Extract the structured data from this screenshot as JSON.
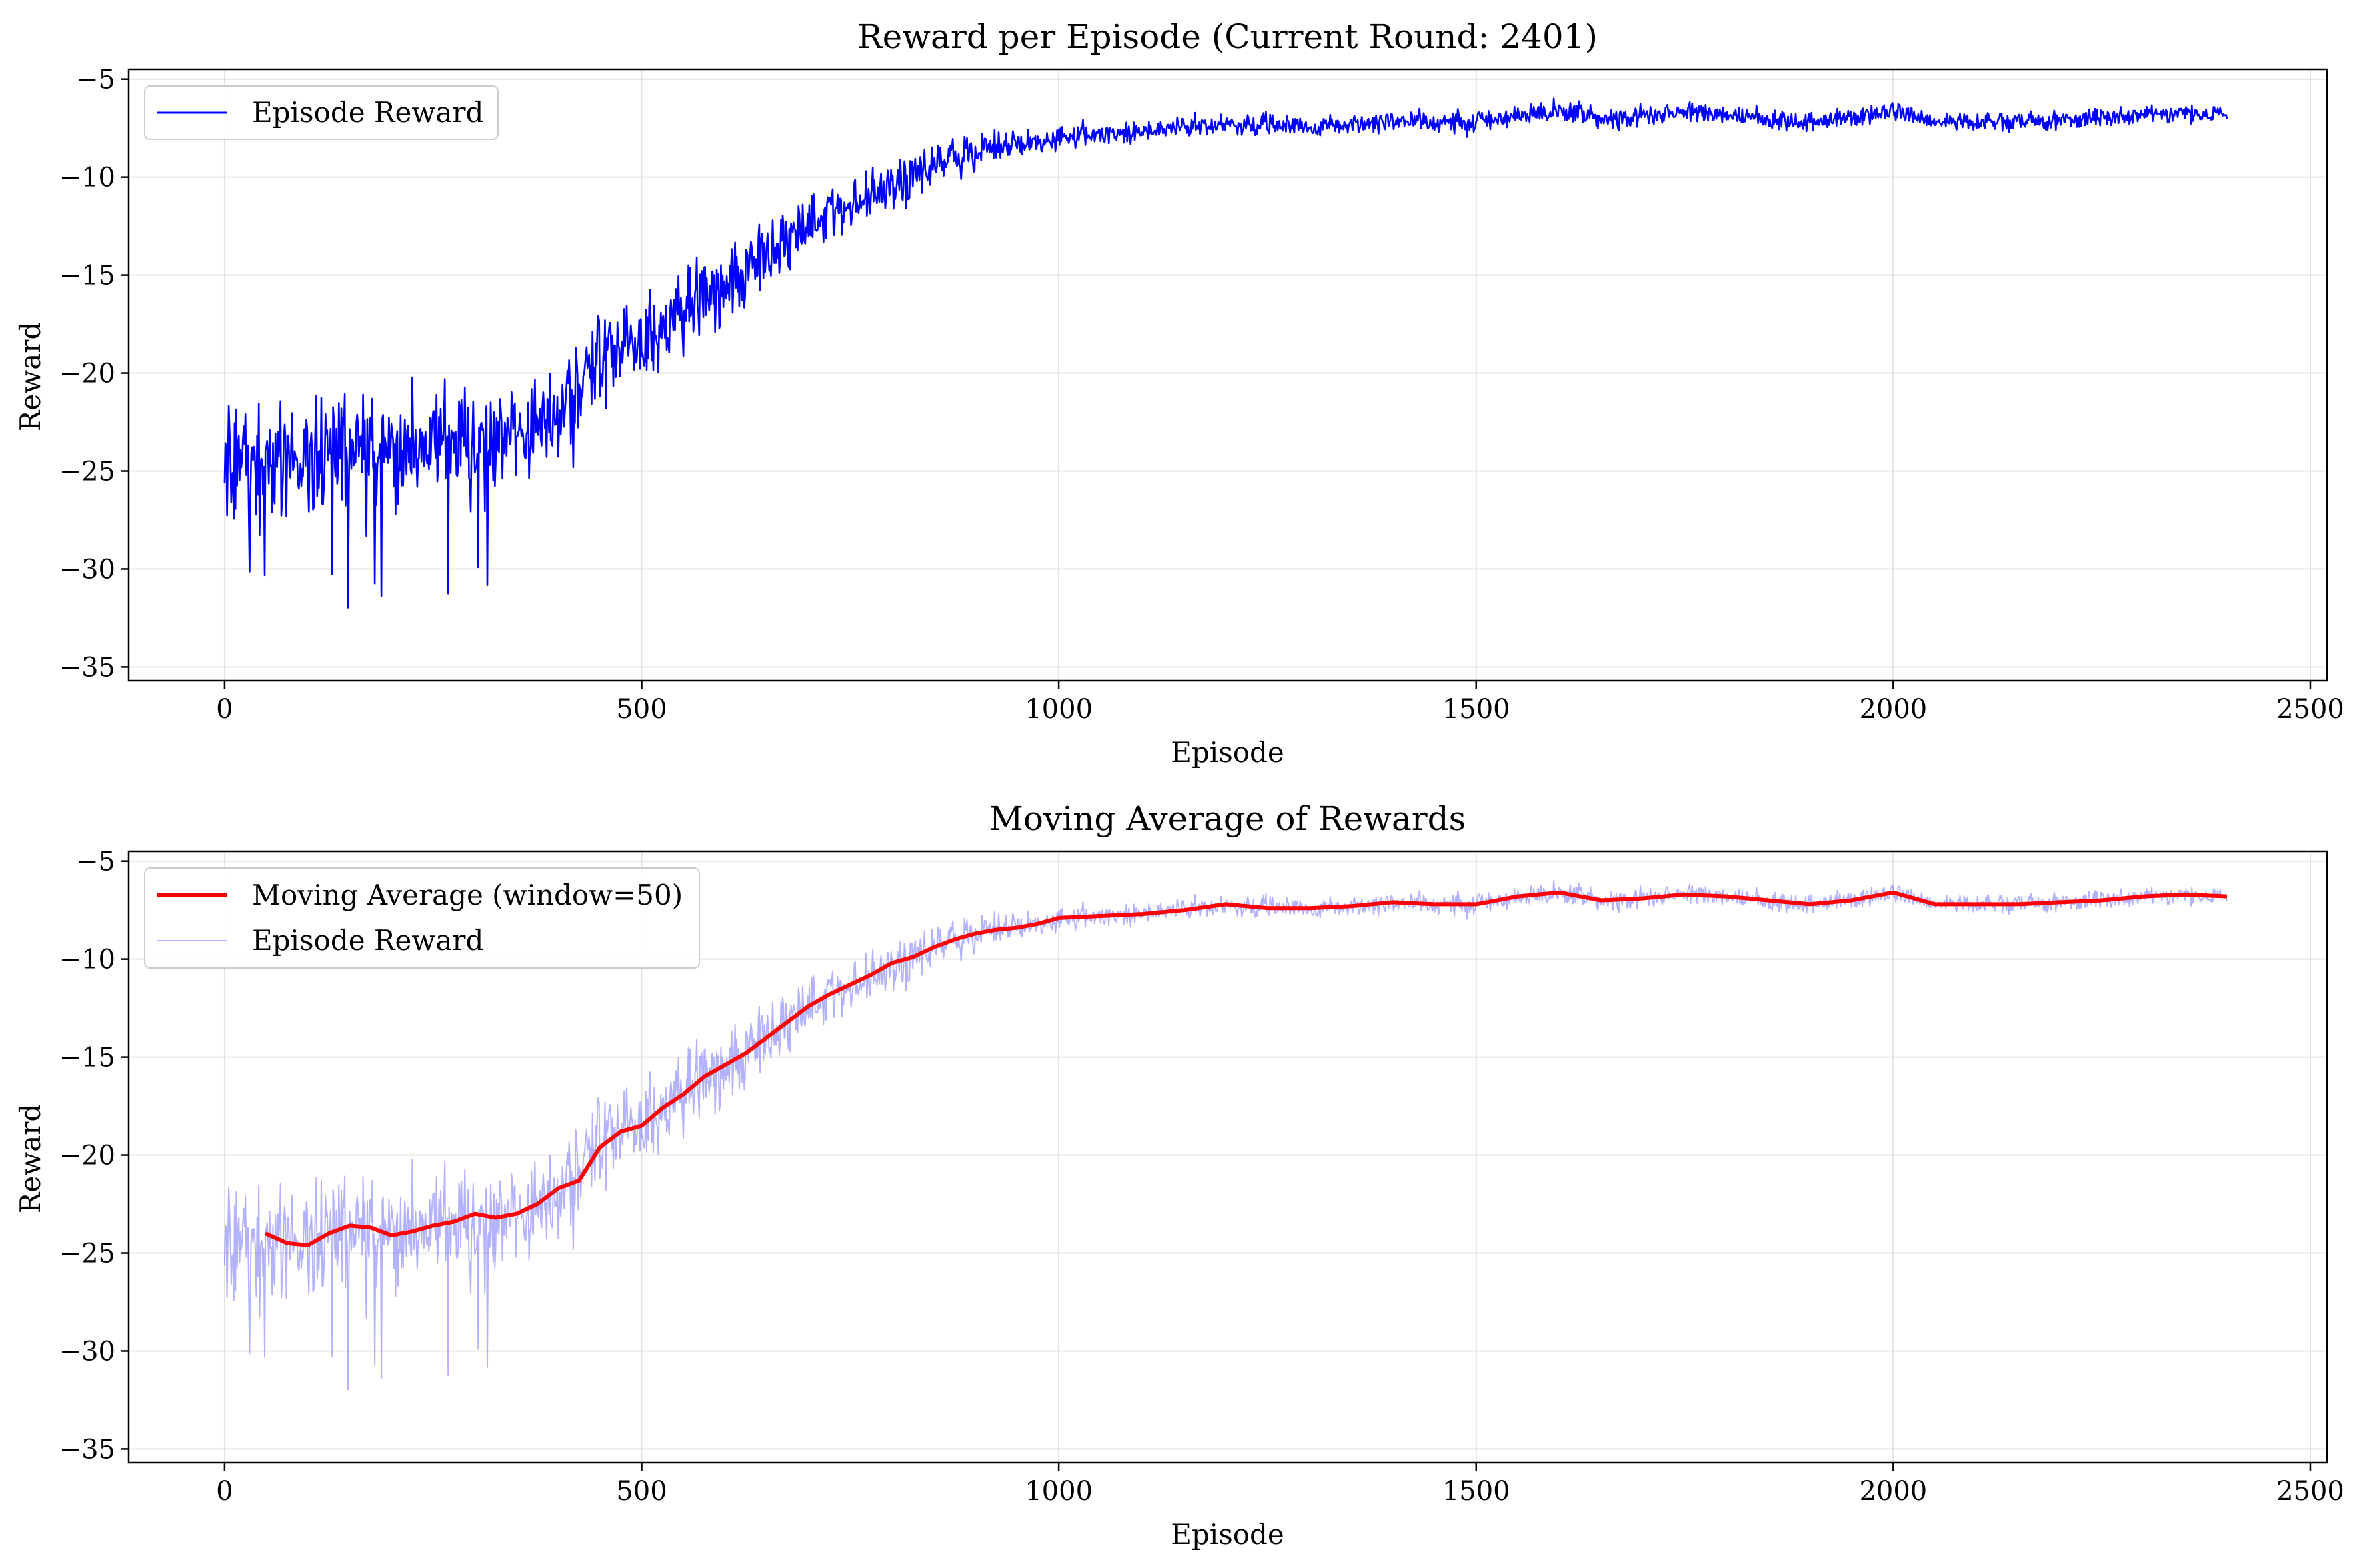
{
  "chart_data": [
    {
      "type": "line",
      "title": "Reward per Episode (Current Round: 2401)",
      "xlabel": "Episode",
      "ylabel": "Reward",
      "xlim": [
        -115,
        2520
      ],
      "ylim": [
        -35.7,
        -4.5
      ],
      "xticks": [
        0,
        500,
        1000,
        1500,
        2000,
        2500
      ],
      "xtick_labels": [
        "0",
        "500",
        "1000",
        "1500",
        "2000",
        "2500"
      ],
      "yticks": [
        -35,
        -30,
        -25,
        -20,
        -15,
        -10,
        -5
      ],
      "ytick_labels": [
        "−35",
        "−30",
        "−25",
        "−20",
        "−15",
        "−10",
        "−5"
      ],
      "grid": true,
      "legend": "upper-left",
      "series": [
        {
          "name": "Episode Reward",
          "color": "#0000ff",
          "kind": "episode",
          "x_start": 0,
          "x_end": 2400,
          "mean_trend": [
            [
              0,
              -24.2
            ],
            [
              50,
              -24.2
            ],
            [
              100,
              -24.6
            ],
            [
              150,
              -23.6
            ],
            [
              200,
              -24.0
            ],
            [
              250,
              -23.6
            ],
            [
              300,
              -23.2
            ],
            [
              350,
              -22.9
            ],
            [
              400,
              -21.6
            ],
            [
              450,
              -19.5
            ],
            [
              500,
              -18.5
            ],
            [
              550,
              -17.0
            ],
            [
              600,
              -15.5
            ],
            [
              650,
              -14.0
            ],
            [
              700,
              -12.4
            ],
            [
              750,
              -11.3
            ],
            [
              800,
              -10.4
            ],
            [
              850,
              -9.4
            ],
            [
              900,
              -8.6
            ],
            [
              950,
              -8.4
            ],
            [
              1000,
              -7.9
            ],
            [
              1050,
              -7.8
            ],
            [
              1100,
              -7.7
            ],
            [
              1150,
              -7.5
            ],
            [
              1200,
              -7.2
            ],
            [
              1250,
              -7.4
            ],
            [
              1300,
              -7.4
            ],
            [
              1350,
              -7.3
            ],
            [
              1400,
              -7.1
            ],
            [
              1450,
              -7.2
            ],
            [
              1500,
              -7.2
            ],
            [
              1550,
              -6.8
            ],
            [
              1600,
              -6.6
            ],
            [
              1650,
              -7.0
            ],
            [
              1700,
              -6.9
            ],
            [
              1750,
              -6.7
            ],
            [
              1800,
              -6.8
            ],
            [
              1850,
              -7.0
            ],
            [
              1900,
              -7.2
            ],
            [
              1950,
              -7.0
            ],
            [
              2000,
              -6.6
            ],
            [
              2050,
              -7.2
            ],
            [
              2100,
              -7.2
            ],
            [
              2150,
              -7.2
            ],
            [
              2200,
              -7.1
            ],
            [
              2250,
              -7.0
            ],
            [
              2300,
              -6.8
            ],
            [
              2350,
              -6.7
            ],
            [
              2400,
              -6.8
            ]
          ],
          "noise_amplitude": [
            [
              0,
              2.4
            ],
            [
              200,
              2.1
            ],
            [
              400,
              1.9
            ],
            [
              600,
              1.4
            ],
            [
              800,
              1.0
            ],
            [
              1000,
              0.45
            ],
            [
              2400,
              0.35
            ]
          ]
        }
      ]
    },
    {
      "type": "line",
      "title": "Moving Average of Rewards",
      "xlabel": "Episode",
      "ylabel": "Reward",
      "xlim": [
        -115,
        2520
      ],
      "ylim": [
        -35.7,
        -4.5
      ],
      "xticks": [
        0,
        500,
        1000,
        1500,
        2000,
        2500
      ],
      "xtick_labels": [
        "0",
        "500",
        "1000",
        "1500",
        "2000",
        "2500"
      ],
      "yticks": [
        -35,
        -30,
        -25,
        -20,
        -15,
        -10,
        -5
      ],
      "ytick_labels": [
        "−35",
        "−30",
        "−25",
        "−20",
        "−15",
        "−10",
        "−5"
      ],
      "grid": true,
      "legend": "upper-left",
      "series": [
        {
          "name": "Moving Average (window=50)",
          "color": "#ff0000",
          "kind": "moving-average",
          "x": [
            49,
            75,
            100,
            125,
            150,
            175,
            200,
            225,
            250,
            275,
            300,
            325,
            350,
            375,
            400,
            425,
            450,
            475,
            500,
            525,
            550,
            575,
            600,
            625,
            650,
            675,
            700,
            725,
            750,
            775,
            800,
            825,
            850,
            875,
            900,
            925,
            950,
            975,
            1000,
            1050,
            1100,
            1150,
            1200,
            1250,
            1300,
            1350,
            1400,
            1450,
            1500,
            1550,
            1600,
            1650,
            1700,
            1750,
            1800,
            1850,
            1900,
            1950,
            2000,
            2050,
            2100,
            2150,
            2200,
            2250,
            2300,
            2350,
            2400
          ],
          "y": [
            -24.0,
            -24.5,
            -24.6,
            -24.0,
            -23.6,
            -23.7,
            -24.1,
            -23.9,
            -23.6,
            -23.4,
            -23.0,
            -23.2,
            -23.0,
            -22.5,
            -21.7,
            -21.3,
            -19.6,
            -18.8,
            -18.5,
            -17.6,
            -16.9,
            -16.0,
            -15.4,
            -14.8,
            -14.0,
            -13.2,
            -12.4,
            -11.8,
            -11.3,
            -10.8,
            -10.2,
            -9.9,
            -9.4,
            -9.0,
            -8.7,
            -8.5,
            -8.4,
            -8.2,
            -7.9,
            -7.8,
            -7.7,
            -7.5,
            -7.2,
            -7.4,
            -7.4,
            -7.3,
            -7.1,
            -7.2,
            -7.2,
            -6.8,
            -6.6,
            -7.0,
            -6.9,
            -6.7,
            -6.8,
            -7.0,
            -7.2,
            -7.0,
            -6.6,
            -7.2,
            -7.2,
            -7.2,
            -7.1,
            -7.0,
            -6.8,
            -6.7,
            -6.8
          ]
        },
        {
          "name": "Episode Reward",
          "color": "#0000ff",
          "opacity": 0.3,
          "kind": "episode",
          "same_as": "chart_data[0].series[0]"
        }
      ]
    }
  ]
}
